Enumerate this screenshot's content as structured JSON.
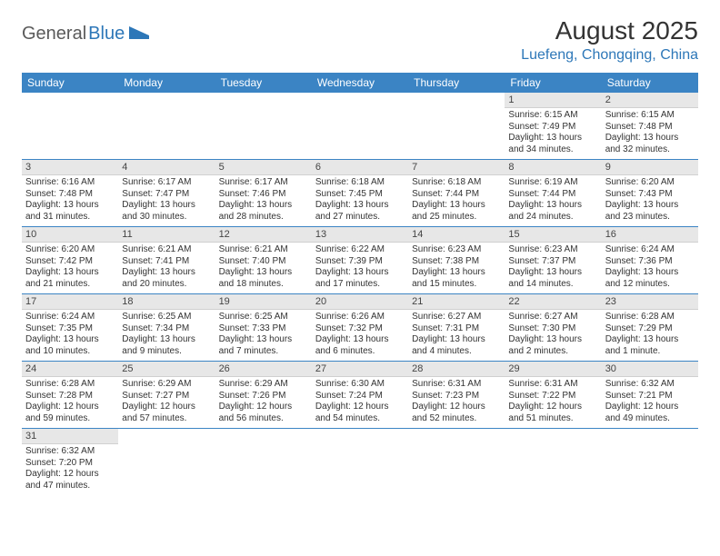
{
  "logo": {
    "text1": "General",
    "text2": "Blue"
  },
  "title": "August 2025",
  "location": "Luefeng, Chongqing, China",
  "colors": {
    "header_bg": "#3b84c4",
    "header_fg": "#ffffff",
    "brand_blue": "#2d77b8",
    "daynum_bg": "#e7e7e7",
    "row_divider": "#3b84c4"
  },
  "weekdays": [
    "Sunday",
    "Monday",
    "Tuesday",
    "Wednesday",
    "Thursday",
    "Friday",
    "Saturday"
  ],
  "weeks": [
    [
      null,
      null,
      null,
      null,
      null,
      {
        "n": "1",
        "sr": "6:15 AM",
        "ss": "7:49 PM",
        "dl": "13 hours and 34 minutes."
      },
      {
        "n": "2",
        "sr": "6:15 AM",
        "ss": "7:48 PM",
        "dl": "13 hours and 32 minutes."
      }
    ],
    [
      {
        "n": "3",
        "sr": "6:16 AM",
        "ss": "7:48 PM",
        "dl": "13 hours and 31 minutes."
      },
      {
        "n": "4",
        "sr": "6:17 AM",
        "ss": "7:47 PM",
        "dl": "13 hours and 30 minutes."
      },
      {
        "n": "5",
        "sr": "6:17 AM",
        "ss": "7:46 PM",
        "dl": "13 hours and 28 minutes."
      },
      {
        "n": "6",
        "sr": "6:18 AM",
        "ss": "7:45 PM",
        "dl": "13 hours and 27 minutes."
      },
      {
        "n": "7",
        "sr": "6:18 AM",
        "ss": "7:44 PM",
        "dl": "13 hours and 25 minutes."
      },
      {
        "n": "8",
        "sr": "6:19 AM",
        "ss": "7:44 PM",
        "dl": "13 hours and 24 minutes."
      },
      {
        "n": "9",
        "sr": "6:20 AM",
        "ss": "7:43 PM",
        "dl": "13 hours and 23 minutes."
      }
    ],
    [
      {
        "n": "10",
        "sr": "6:20 AM",
        "ss": "7:42 PM",
        "dl": "13 hours and 21 minutes."
      },
      {
        "n": "11",
        "sr": "6:21 AM",
        "ss": "7:41 PM",
        "dl": "13 hours and 20 minutes."
      },
      {
        "n": "12",
        "sr": "6:21 AM",
        "ss": "7:40 PM",
        "dl": "13 hours and 18 minutes."
      },
      {
        "n": "13",
        "sr": "6:22 AM",
        "ss": "7:39 PM",
        "dl": "13 hours and 17 minutes."
      },
      {
        "n": "14",
        "sr": "6:23 AM",
        "ss": "7:38 PM",
        "dl": "13 hours and 15 minutes."
      },
      {
        "n": "15",
        "sr": "6:23 AM",
        "ss": "7:37 PM",
        "dl": "13 hours and 14 minutes."
      },
      {
        "n": "16",
        "sr": "6:24 AM",
        "ss": "7:36 PM",
        "dl": "13 hours and 12 minutes."
      }
    ],
    [
      {
        "n": "17",
        "sr": "6:24 AM",
        "ss": "7:35 PM",
        "dl": "13 hours and 10 minutes."
      },
      {
        "n": "18",
        "sr": "6:25 AM",
        "ss": "7:34 PM",
        "dl": "13 hours and 9 minutes."
      },
      {
        "n": "19",
        "sr": "6:25 AM",
        "ss": "7:33 PM",
        "dl": "13 hours and 7 minutes."
      },
      {
        "n": "20",
        "sr": "6:26 AM",
        "ss": "7:32 PM",
        "dl": "13 hours and 6 minutes."
      },
      {
        "n": "21",
        "sr": "6:27 AM",
        "ss": "7:31 PM",
        "dl": "13 hours and 4 minutes."
      },
      {
        "n": "22",
        "sr": "6:27 AM",
        "ss": "7:30 PM",
        "dl": "13 hours and 2 minutes."
      },
      {
        "n": "23",
        "sr": "6:28 AM",
        "ss": "7:29 PM",
        "dl": "13 hours and 1 minute."
      }
    ],
    [
      {
        "n": "24",
        "sr": "6:28 AM",
        "ss": "7:28 PM",
        "dl": "12 hours and 59 minutes."
      },
      {
        "n": "25",
        "sr": "6:29 AM",
        "ss": "7:27 PM",
        "dl": "12 hours and 57 minutes."
      },
      {
        "n": "26",
        "sr": "6:29 AM",
        "ss": "7:26 PM",
        "dl": "12 hours and 56 minutes."
      },
      {
        "n": "27",
        "sr": "6:30 AM",
        "ss": "7:24 PM",
        "dl": "12 hours and 54 minutes."
      },
      {
        "n": "28",
        "sr": "6:31 AM",
        "ss": "7:23 PM",
        "dl": "12 hours and 52 minutes."
      },
      {
        "n": "29",
        "sr": "6:31 AM",
        "ss": "7:22 PM",
        "dl": "12 hours and 51 minutes."
      },
      {
        "n": "30",
        "sr": "6:32 AM",
        "ss": "7:21 PM",
        "dl": "12 hours and 49 minutes."
      }
    ],
    [
      {
        "n": "31",
        "sr": "6:32 AM",
        "ss": "7:20 PM",
        "dl": "12 hours and 47 minutes."
      },
      null,
      null,
      null,
      null,
      null,
      null
    ]
  ],
  "labels": {
    "sunrise": "Sunrise:",
    "sunset": "Sunset:",
    "daylight": "Daylight:"
  }
}
